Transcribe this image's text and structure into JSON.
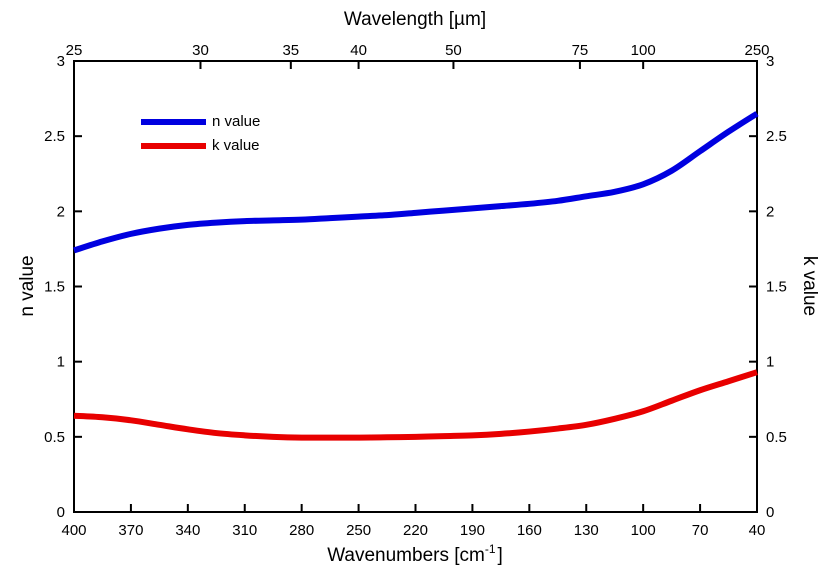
{
  "chart_data": {
    "type": "line",
    "title": "",
    "top_axis": {
      "label": "Wavelength [µm]",
      "unit": "µm",
      "tick_labels": [
        "25",
        "30",
        "35",
        "40",
        "50",
        "75",
        "100",
        "250"
      ],
      "tick_values_um": [
        25,
        30,
        35,
        40,
        50,
        75,
        100,
        250
      ]
    },
    "x_axis": {
      "label_main": "Wavenumbers [cm",
      "label_sup": "-1",
      "label_end": "]",
      "range": [
        400,
        40
      ],
      "reversed": true,
      "tick_labels": [
        "400",
        "370",
        "340",
        "310",
        "280",
        "250",
        "220",
        "190",
        "160",
        "130",
        "100",
        "70",
        "40"
      ],
      "tick_values": [
        400,
        370,
        340,
        310,
        280,
        250,
        220,
        190,
        160,
        130,
        100,
        70,
        40
      ]
    },
    "y_left": {
      "label": "n value",
      "range": [
        0,
        3
      ],
      "tick_labels": [
        "0",
        "0.5",
        "1",
        "1.5",
        "2",
        "2.5",
        "3"
      ],
      "tick_values": [
        0,
        0.5,
        1,
        1.5,
        2,
        2.5,
        3
      ]
    },
    "y_right": {
      "label": "k value",
      "range": [
        0,
        3
      ],
      "tick_labels": [
        "0",
        "0.5",
        "1",
        "1.5",
        "2",
        "2.5",
        "3"
      ],
      "tick_values": [
        0,
        0.5,
        1,
        1.5,
        2,
        2.5,
        3
      ]
    },
    "grid": false,
    "legend_position": "top-left",
    "series": [
      {
        "name": "n value",
        "color": "#0000e0",
        "x": [
          400,
          385,
          370,
          355,
          340,
          325,
          310,
          295,
          280,
          265,
          250,
          235,
          220,
          205,
          190,
          175,
          160,
          145,
          130,
          115,
          100,
          85,
          70,
          55,
          40
        ],
        "y": [
          1.74,
          1.8,
          1.85,
          1.885,
          1.91,
          1.925,
          1.935,
          1.94,
          1.945,
          1.955,
          1.965,
          1.975,
          1.99,
          2.005,
          2.02,
          2.035,
          2.05,
          2.07,
          2.1,
          2.13,
          2.18,
          2.27,
          2.4,
          2.53,
          2.65
        ]
      },
      {
        "name": "k value",
        "color": "#e80000",
        "x": [
          400,
          385,
          370,
          355,
          340,
          325,
          310,
          295,
          280,
          265,
          250,
          235,
          220,
          205,
          190,
          175,
          160,
          145,
          130,
          115,
          100,
          85,
          70,
          55,
          40
        ],
        "y": [
          0.64,
          0.63,
          0.61,
          0.58,
          0.55,
          0.525,
          0.51,
          0.5,
          0.495,
          0.495,
          0.495,
          0.497,
          0.5,
          0.505,
          0.51,
          0.52,
          0.535,
          0.555,
          0.58,
          0.62,
          0.67,
          0.74,
          0.81,
          0.87,
          0.93
        ]
      }
    ]
  }
}
